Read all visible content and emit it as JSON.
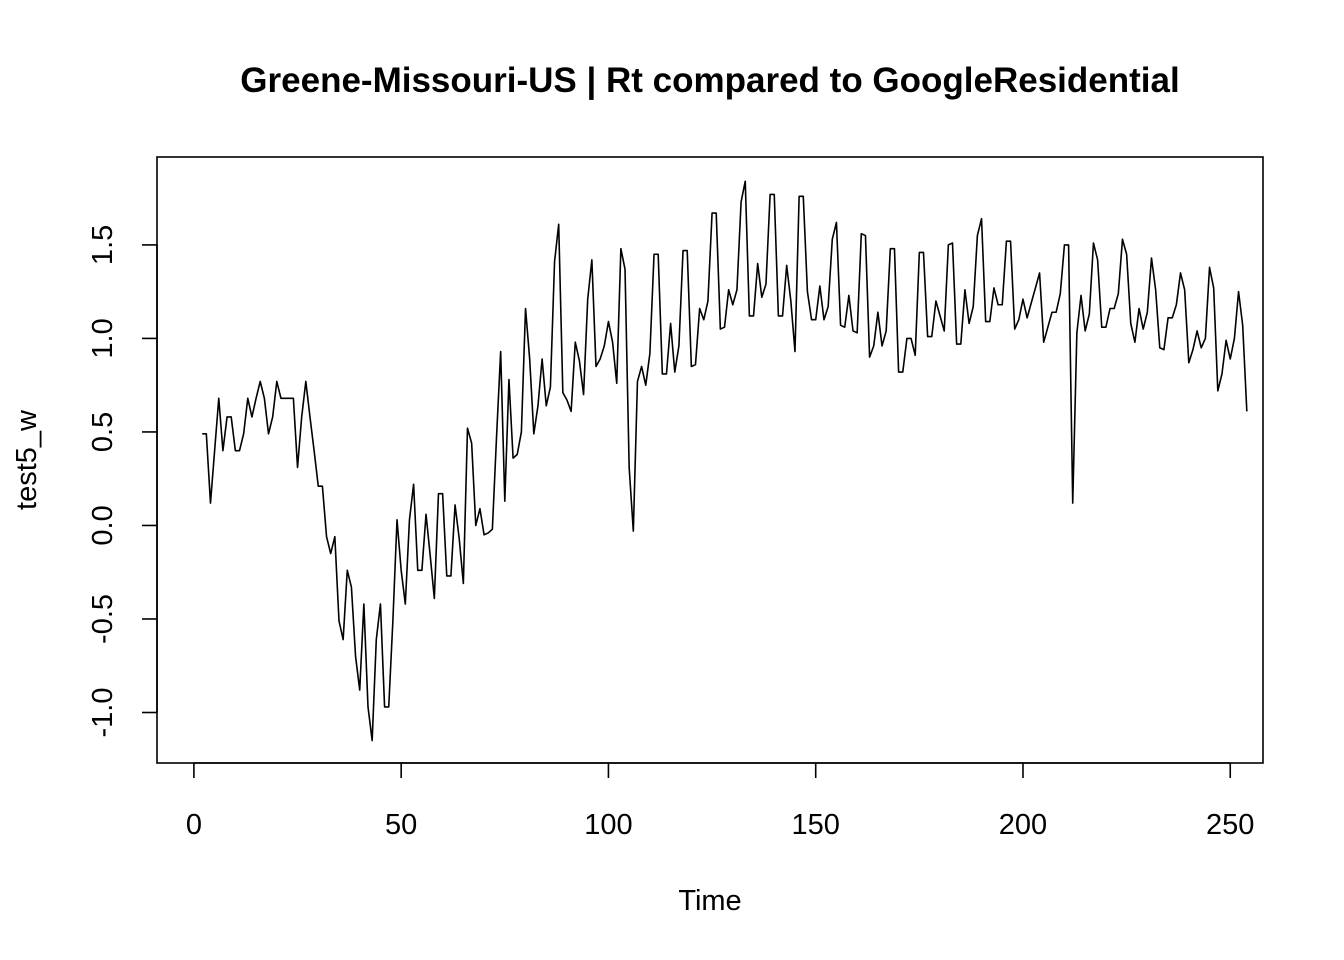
{
  "chart_data": {
    "type": "line",
    "title": "Greene-Missouri-US | Rt compared to GoogleResidential",
    "xlabel": "Time",
    "ylabel": "test5_w",
    "xlim": [
      -8.9,
      257.9
    ],
    "ylim": [
      -1.27,
      1.97
    ],
    "x_ticks": [
      0,
      50,
      100,
      150,
      200,
      250
    ],
    "y_ticks": [
      -1.0,
      -0.5,
      0.0,
      0.5,
      1.0,
      1.5
    ],
    "x_tick_labels": [
      "0",
      "50",
      "100",
      "150",
      "200",
      "250"
    ],
    "y_tick_labels": [
      "-1.0",
      "-0.5",
      "0.0",
      "0.5",
      "1.0",
      "1.5"
    ],
    "grid": false,
    "line_color": "#000000",
    "series": [
      {
        "x_start": 2,
        "values": [
          0.49,
          0.49,
          0.12,
          0.4,
          0.68,
          0.4,
          0.58,
          0.58,
          0.4,
          0.4,
          0.49,
          0.68,
          0.58,
          0.68,
          0.77,
          0.68,
          0.49,
          0.58,
          0.77,
          0.68,
          0.68,
          0.68,
          0.68,
          0.31,
          0.58,
          0.77,
          0.58,
          0.4,
          0.21,
          0.21,
          -0.06,
          -0.15,
          -0.06,
          -0.51,
          -0.61,
          -0.24,
          -0.33,
          -0.7,
          -0.88,
          -0.42,
          -0.97,
          -1.15,
          -0.61,
          -0.42,
          -0.97,
          -0.97,
          -0.51,
          0.03,
          -0.24,
          -0.42,
          0.03,
          0.22,
          -0.24,
          -0.24,
          0.06,
          -0.16,
          -0.39,
          0.17,
          0.17,
          -0.27,
          -0.27,
          0.11,
          -0.07,
          -0.31,
          0.52,
          0.44,
          0.0,
          0.09,
          -0.05,
          -0.04,
          -0.02,
          0.47,
          0.93,
          0.13,
          0.78,
          0.36,
          0.38,
          0.5,
          1.16,
          0.89,
          0.49,
          0.64,
          0.89,
          0.64,
          0.74,
          1.41,
          1.61,
          0.71,
          0.67,
          0.61,
          0.98,
          0.88,
          0.7,
          1.21,
          1.42,
          0.85,
          0.89,
          0.96,
          1.09,
          0.98,
          0.76,
          1.48,
          1.37,
          0.31,
          -0.03,
          0.77,
          0.85,
          0.75,
          0.92,
          1.45,
          1.45,
          0.81,
          0.81,
          1.08,
          0.82,
          0.96,
          1.47,
          1.47,
          0.85,
          0.86,
          1.16,
          1.1,
          1.2,
          1.67,
          1.67,
          1.05,
          1.06,
          1.26,
          1.18,
          1.26,
          1.73,
          1.84,
          1.12,
          1.12,
          1.4,
          1.22,
          1.29,
          1.77,
          1.77,
          1.12,
          1.12,
          1.39,
          1.2,
          0.93,
          1.76,
          1.76,
          1.25,
          1.1,
          1.1,
          1.28,
          1.1,
          1.17,
          1.53,
          1.62,
          1.07,
          1.06,
          1.23,
          1.04,
          1.03,
          1.56,
          1.55,
          0.9,
          0.96,
          1.14,
          0.96,
          1.04,
          1.48,
          1.48,
          0.82,
          0.82,
          1.0,
          1.0,
          0.91,
          1.46,
          1.46,
          1.01,
          1.01,
          1.2,
          1.12,
          1.04,
          1.5,
          1.51,
          0.97,
          0.97,
          1.26,
          1.08,
          1.17,
          1.55,
          1.64,
          1.09,
          1.09,
          1.27,
          1.18,
          1.18,
          1.52,
          1.52,
          1.05,
          1.1,
          1.21,
          1.11,
          1.19,
          1.27,
          1.35,
          0.98,
          1.06,
          1.14,
          1.14,
          1.24,
          1.5,
          1.5,
          0.12,
          1.03,
          1.23,
          1.04,
          1.13,
          1.51,
          1.42,
          1.06,
          1.06,
          1.16,
          1.16,
          1.24,
          1.53,
          1.45,
          1.08,
          0.98,
          1.16,
          1.05,
          1.14,
          1.43,
          1.26,
          0.95,
          0.94,
          1.11,
          1.11,
          1.18,
          1.35,
          1.26,
          0.87,
          0.94,
          1.04,
          0.95,
          1.0,
          1.38,
          1.27,
          0.72,
          0.81,
          0.99,
          0.89,
          1.0,
          1.25,
          1.07,
          0.61
        ]
      }
    ]
  }
}
